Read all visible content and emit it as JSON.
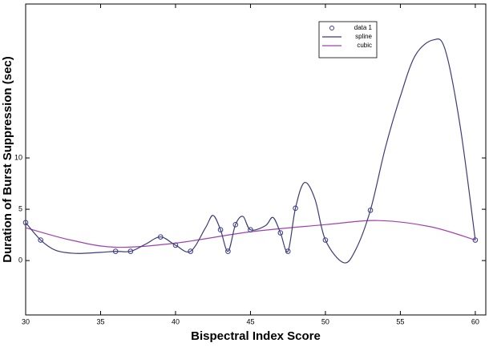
{
  "chart_data": {
    "type": "line",
    "x_label": "Bispectral Index Score",
    "y_label": "Duration of Burst Suppression (sec)",
    "xlim": [
      30,
      60.7
    ],
    "ylim": [
      -5.3,
      25
    ],
    "xticks": [
      30,
      35,
      40,
      45,
      50,
      55,
      60
    ],
    "yticks": [
      0,
      5,
      10
    ],
    "legend": "top-right",
    "series": [
      {
        "name": "data 1",
        "color": "#3a3a8c",
        "style": "markers",
        "x": [
          30,
          31,
          36,
          37,
          39,
          40,
          41,
          43,
          43.5,
          44,
          45,
          47,
          47.5,
          48,
          50,
          53,
          60
        ],
        "values": [
          3.7,
          2.0,
          0.9,
          0.9,
          2.3,
          1.5,
          0.9,
          3.0,
          0.9,
          3.5,
          3.0,
          2.7,
          0.9,
          5.1,
          2.0,
          4.9,
          2.0
        ]
      },
      {
        "name": "spline",
        "color": "#3b3b7a",
        "style": "line",
        "x": [
          30,
          31,
          32,
          33.3,
          35,
          36,
          37,
          38,
          39,
          40,
          41,
          42,
          42.5,
          43,
          43.5,
          44,
          44.5,
          45,
          46,
          46.5,
          47,
          47.5,
          48,
          48.6,
          49.3,
          50,
          51.2,
          52,
          53,
          54,
          55,
          56,
          57.2,
          58,
          59,
          60
        ],
        "values": [
          3.7,
          2.0,
          1.0,
          0.7,
          0.8,
          0.9,
          0.9,
          1.6,
          2.3,
          1.5,
          0.9,
          3.2,
          4.4,
          3.0,
          0.9,
          3.5,
          4.3,
          3.0,
          3.4,
          4.2,
          2.7,
          0.9,
          5.1,
          7.6,
          6.0,
          2.0,
          -0.2,
          1.0,
          4.9,
          11,
          16,
          20,
          21.5,
          20.5,
          13,
          2.0
        ]
      },
      {
        "name": "cubic",
        "color": "#a040b0",
        "style": "line",
        "x": [
          30,
          33,
          36,
          40,
          45,
          50,
          53.5,
          57,
          60
        ],
        "values": [
          3.2,
          2.0,
          1.3,
          1.7,
          2.8,
          3.5,
          3.9,
          3.3,
          2.0
        ]
      }
    ]
  }
}
